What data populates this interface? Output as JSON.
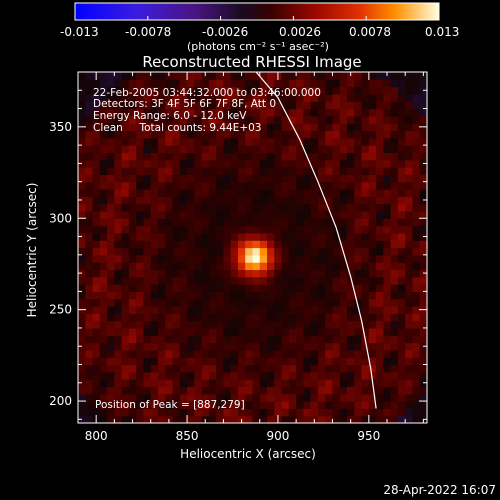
{
  "chart_data": {
    "type": "heatmap",
    "title": "Reconstructed RHESSI Image",
    "xlabel": "Heliocentric X (arcsec)",
    "ylabel": "Heliocentric Y (arcsec)",
    "xlim": [
      790,
      982
    ],
    "ylim": [
      188,
      380
    ],
    "x_ticks": [
      800,
      850,
      900,
      950
    ],
    "y_ticks": [
      200,
      250,
      300,
      350
    ],
    "colorbar": {
      "min": -0.013,
      "max": 0.013,
      "ticks": [
        "-0.013",
        "-0.0078",
        "-0.0026",
        "0.0026",
        "0.0078",
        "0.013"
      ],
      "unit_label": "(photons cm⁻² s⁻¹ asec⁻²)"
    },
    "annotations": [
      "22-Feb-2005 03:44:32.000  to  03:46:00.000",
      "Detectors: 3F 4F 5F 6F 7F 8F, Att 0",
      "Energy Range: 6.0 - 12.0 keV",
      "Clean     Total counts: 9.44E+03"
    ],
    "peak_label": "Position of Peak = [887,279]",
    "peak": {
      "x": 887,
      "y": 279,
      "value": 0.013
    },
    "limb_curve": {
      "description": "solar limb",
      "points": [
        [
          888,
          380
        ],
        [
          900,
          366
        ],
        [
          912,
          343
        ],
        [
          922,
          320
        ],
        [
          932,
          295
        ],
        [
          940,
          268
        ],
        [
          946,
          244
        ],
        [
          951,
          218
        ],
        [
          954,
          196
        ]
      ]
    },
    "background_level": 0.0009,
    "grid": false
  },
  "footer": {
    "timestamp": "28-Apr-2022 16:07"
  }
}
